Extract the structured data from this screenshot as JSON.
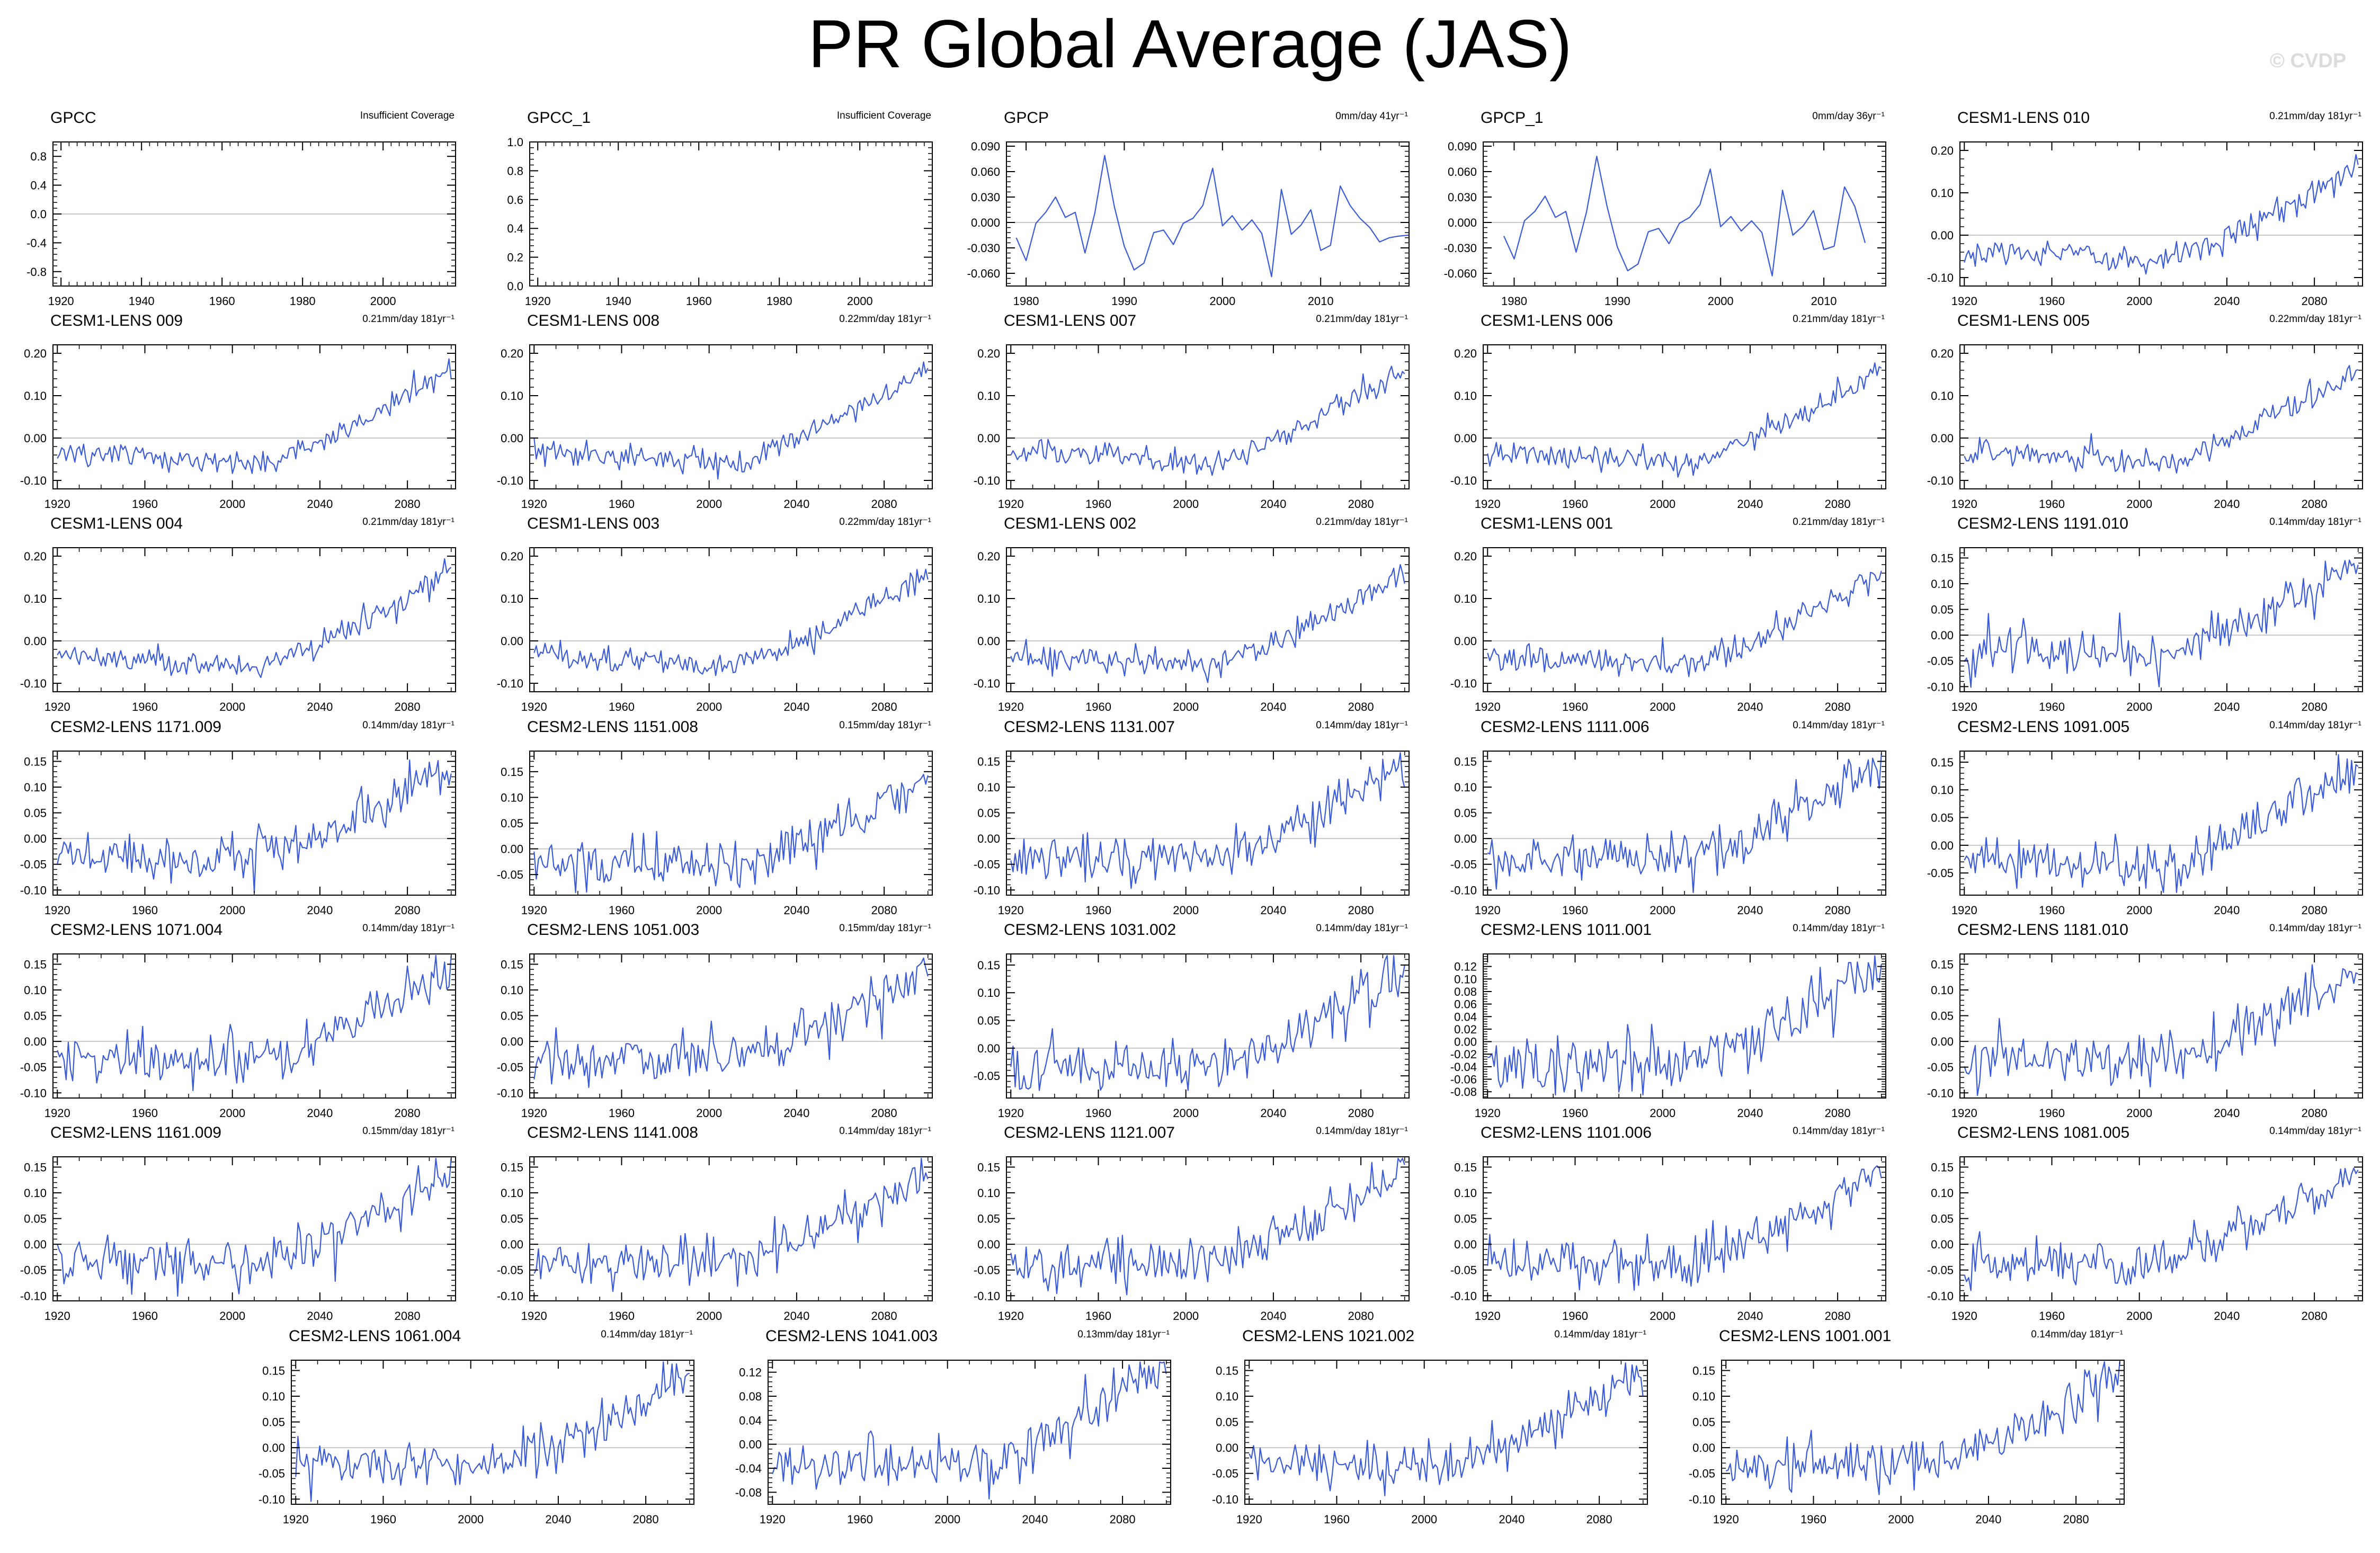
{
  "title": "PR Global Average (JAS)",
  "watermark": "© CVDP",
  "colors": {
    "line": "#3a5bd9",
    "zero": "#c8c8c8",
    "frame": "#000000"
  },
  "chart_data": [
    {
      "type": "line",
      "title": "GPCC",
      "note": "Insufficient Coverage",
      "x_ticks": [
        1920,
        1940,
        1960,
        1980,
        2000
      ],
      "y_ticks": [
        -0.8,
        -0.4,
        0.0,
        0.4,
        0.8
      ],
      "tick_decimals": 1,
      "xlim": [
        1918,
        2018
      ],
      "ylim": [
        -1.0,
        1.0
      ],
      "series": []
    },
    {
      "type": "line",
      "title": "GPCC_1",
      "note": "Insufficient Coverage",
      "x_ticks": [
        1920,
        1940,
        1960,
        1980,
        2000
      ],
      "y_ticks": [
        0.0,
        0.2,
        0.4,
        0.6,
        0.8,
        1.0
      ],
      "tick_decimals": 1,
      "xlim": [
        1918,
        2018
      ],
      "ylim": [
        0.0,
        1.0
      ],
      "series": []
    },
    {
      "type": "line",
      "title": "GPCP",
      "note": "0mm/day 41yr⁻¹",
      "x_ticks": [
        1980,
        1990,
        2000,
        2010
      ],
      "y_ticks": [
        -0.06,
        -0.03,
        0.0,
        0.03,
        0.06,
        0.09
      ],
      "tick_decimals": 3,
      "xlim": [
        1978,
        2019
      ],
      "ylim": [
        -0.075,
        0.095
      ],
      "series": [
        {
          "name": "GPCP",
          "x_start": 1979,
          "values": [
            -0.018,
            -0.045,
            -0.001,
            0.012,
            0.03,
            0.006,
            0.012,
            -0.036,
            0.011,
            0.079,
            0.018,
            -0.028,
            -0.056,
            -0.048,
            -0.012,
            -0.009,
            -0.026,
            -0.001,
            0.005,
            0.02,
            0.064,
            -0.004,
            0.008,
            -0.009,
            0.003,
            -0.013,
            -0.064,
            0.039,
            -0.014,
            -0.003,
            0.015,
            -0.033,
            -0.027,
            0.043,
            0.02,
            0.005,
            -0.006,
            -0.023,
            -0.018,
            -0.016,
            -0.015
          ]
        }
      ]
    },
    {
      "type": "line",
      "title": "GPCP_1",
      "note": "0mm/day 36yr⁻¹",
      "x_ticks": [
        1980,
        1990,
        2000,
        2010
      ],
      "y_ticks": [
        -0.06,
        -0.03,
        0.0,
        0.03,
        0.06,
        0.09
      ],
      "tick_decimals": 3,
      "xlim": [
        1977,
        2016
      ],
      "ylim": [
        -0.075,
        0.095
      ],
      "series": [
        {
          "name": "GPCP_1",
          "x_start": 1979,
          "values": [
            -0.016,
            -0.043,
            0.002,
            0.013,
            0.031,
            0.006,
            0.013,
            -0.035,
            0.012,
            0.078,
            0.019,
            -0.029,
            -0.057,
            -0.049,
            -0.011,
            -0.007,
            -0.025,
            -0.001,
            0.006,
            0.021,
            0.063,
            -0.005,
            0.007,
            -0.01,
            0.002,
            -0.012,
            -0.063,
            0.038,
            -0.015,
            -0.004,
            0.014,
            -0.032,
            -0.028,
            0.042,
            0.019,
            -0.024
          ]
        }
      ]
    },
    {
      "type": "line",
      "title": "CESM1-LENS 010",
      "note": "0.21mm/day 181yr⁻¹",
      "model": "CESM1",
      "seed": 10,
      "x_ticks": [
        1920,
        1960,
        2000,
        2040,
        2080
      ],
      "y_ticks": [
        -0.1,
        0.0,
        0.1,
        0.2
      ],
      "tick_decimals": 2,
      "xlim": [
        1918,
        2102
      ],
      "ylim": [
        -0.12,
        0.22
      ],
      "x_start": 1920,
      "x_end": 2100
    },
    {
      "type": "line",
      "title": "CESM1-LENS 009",
      "note": "0.21mm/day 181yr⁻¹",
      "model": "CESM1",
      "seed": 9,
      "x_ticks": [
        1920,
        1960,
        2000,
        2040,
        2080
      ],
      "y_ticks": [
        -0.1,
        0.0,
        0.1,
        0.2
      ],
      "tick_decimals": 2,
      "xlim": [
        1918,
        2102
      ],
      "ylim": [
        -0.12,
        0.22
      ],
      "x_start": 1920,
      "x_end": 2100
    },
    {
      "type": "line",
      "title": "CESM1-LENS 008",
      "note": "0.22mm/day 181yr⁻¹",
      "model": "CESM1",
      "seed": 8,
      "x_ticks": [
        1920,
        1960,
        2000,
        2040,
        2080
      ],
      "y_ticks": [
        -0.1,
        0.0,
        0.1,
        0.2
      ],
      "tick_decimals": 2,
      "xlim": [
        1918,
        2102
      ],
      "ylim": [
        -0.12,
        0.22
      ],
      "x_start": 1920,
      "x_end": 2100
    },
    {
      "type": "line",
      "title": "CESM1-LENS 007",
      "note": "0.21mm/day 181yr⁻¹",
      "model": "CESM1",
      "seed": 7,
      "x_ticks": [
        1920,
        1960,
        2000,
        2040,
        2080
      ],
      "y_ticks": [
        -0.1,
        0.0,
        0.1,
        0.2
      ],
      "tick_decimals": 2,
      "xlim": [
        1918,
        2102
      ],
      "ylim": [
        -0.12,
        0.22
      ],
      "x_start": 1920,
      "x_end": 2100
    },
    {
      "type": "line",
      "title": "CESM1-LENS 006",
      "note": "0.21mm/day 181yr⁻¹",
      "model": "CESM1",
      "seed": 6,
      "x_ticks": [
        1920,
        1960,
        2000,
        2040,
        2080
      ],
      "y_ticks": [
        -0.1,
        0.0,
        0.1,
        0.2
      ],
      "tick_decimals": 2,
      "xlim": [
        1918,
        2102
      ],
      "ylim": [
        -0.12,
        0.22
      ],
      "x_start": 1920,
      "x_end": 2100
    },
    {
      "type": "line",
      "title": "CESM1-LENS 005",
      "note": "0.22mm/day 181yr⁻¹",
      "model": "CESM1",
      "seed": 5,
      "x_ticks": [
        1920,
        1960,
        2000,
        2040,
        2080
      ],
      "y_ticks": [
        -0.1,
        0.0,
        0.1,
        0.2
      ],
      "tick_decimals": 2,
      "xlim": [
        1918,
        2102
      ],
      "ylim": [
        -0.12,
        0.22
      ],
      "x_start": 1920,
      "x_end": 2100
    },
    {
      "type": "line",
      "title": "CESM1-LENS 004",
      "note": "0.21mm/day 181yr⁻¹",
      "model": "CESM1",
      "seed": 4,
      "x_ticks": [
        1920,
        1960,
        2000,
        2040,
        2080
      ],
      "y_ticks": [
        -0.1,
        0.0,
        0.1,
        0.2
      ],
      "tick_decimals": 2,
      "xlim": [
        1918,
        2102
      ],
      "ylim": [
        -0.12,
        0.22
      ],
      "x_start": 1920,
      "x_end": 2100
    },
    {
      "type": "line",
      "title": "CESM1-LENS 003",
      "note": "0.22mm/day 181yr⁻¹",
      "model": "CESM1",
      "seed": 3,
      "x_ticks": [
        1920,
        1960,
        2000,
        2040,
        2080
      ],
      "y_ticks": [
        -0.1,
        0.0,
        0.1,
        0.2
      ],
      "tick_decimals": 2,
      "xlim": [
        1918,
        2102
      ],
      "ylim": [
        -0.12,
        0.22
      ],
      "x_start": 1920,
      "x_end": 2100
    },
    {
      "type": "line",
      "title": "CESM1-LENS 002",
      "note": "0.21mm/day 181yr⁻¹",
      "model": "CESM1",
      "seed": 2,
      "x_ticks": [
        1920,
        1960,
        2000,
        2040,
        2080
      ],
      "y_ticks": [
        -0.1,
        0.0,
        0.1,
        0.2
      ],
      "tick_decimals": 2,
      "xlim": [
        1918,
        2102
      ],
      "ylim": [
        -0.12,
        0.22
      ],
      "x_start": 1920,
      "x_end": 2100
    },
    {
      "type": "line",
      "title": "CESM1-LENS 001",
      "note": "0.21mm/day 181yr⁻¹",
      "model": "CESM1",
      "seed": 1,
      "x_ticks": [
        1920,
        1960,
        2000,
        2040,
        2080
      ],
      "y_ticks": [
        -0.1,
        0.0,
        0.1,
        0.2
      ],
      "tick_decimals": 2,
      "xlim": [
        1918,
        2102
      ],
      "ylim": [
        -0.12,
        0.22
      ],
      "x_start": 1920,
      "x_end": 2100
    },
    {
      "type": "line",
      "title": "CESM2-LENS 1191.010",
      "note": "0.14mm/day 181yr⁻¹",
      "model": "CESM2",
      "seed": 20,
      "x_ticks": [
        1920,
        1960,
        2000,
        2040,
        2080
      ],
      "y_ticks": [
        -0.1,
        -0.05,
        0.0,
        0.05,
        0.1,
        0.15
      ],
      "tick_decimals": 2,
      "xlim": [
        1918,
        2102
      ],
      "ylim": [
        -0.11,
        0.17
      ],
      "x_start": 1920,
      "x_end": 2100
    },
    {
      "type": "line",
      "title": "CESM2-LENS 1171.009",
      "note": "0.14mm/day 181yr⁻¹",
      "model": "CESM2",
      "seed": 19,
      "x_ticks": [
        1920,
        1960,
        2000,
        2040,
        2080
      ],
      "y_ticks": [
        -0.1,
        -0.05,
        0.0,
        0.05,
        0.1,
        0.15
      ],
      "tick_decimals": 2,
      "xlim": [
        1918,
        2102
      ],
      "ylim": [
        -0.11,
        0.17
      ],
      "x_start": 1920,
      "x_end": 2100
    },
    {
      "type": "line",
      "title": "CESM2-LENS 1151.008",
      "note": "0.15mm/day 181yr⁻¹",
      "model": "CESM2",
      "seed": 18,
      "x_ticks": [
        1920,
        1960,
        2000,
        2040,
        2080
      ],
      "y_ticks": [
        -0.05,
        0.0,
        0.05,
        0.1,
        0.15
      ],
      "tick_decimals": 2,
      "xlim": [
        1918,
        2102
      ],
      "ylim": [
        -0.09,
        0.19
      ],
      "x_start": 1920,
      "x_end": 2100
    },
    {
      "type": "line",
      "title": "CESM2-LENS 1131.007",
      "note": "0.14mm/day 181yr⁻¹",
      "model": "CESM2",
      "seed": 17,
      "x_ticks": [
        1920,
        1960,
        2000,
        2040,
        2080
      ],
      "y_ticks": [
        -0.1,
        -0.05,
        0.0,
        0.05,
        0.1,
        0.15
      ],
      "tick_decimals": 2,
      "xlim": [
        1918,
        2102
      ],
      "ylim": [
        -0.11,
        0.17
      ],
      "x_start": 1920,
      "x_end": 2100
    },
    {
      "type": "line",
      "title": "CESM2-LENS 1111.006",
      "note": "0.14mm/day 181yr⁻¹",
      "model": "CESM2",
      "seed": 16,
      "x_ticks": [
        1920,
        1960,
        2000,
        2040,
        2080
      ],
      "y_ticks": [
        -0.1,
        -0.05,
        0.0,
        0.05,
        0.1,
        0.15
      ],
      "tick_decimals": 2,
      "xlim": [
        1918,
        2102
      ],
      "ylim": [
        -0.11,
        0.17
      ],
      "x_start": 1920,
      "x_end": 2100
    },
    {
      "type": "line",
      "title": "CESM2-LENS 1091.005",
      "note": "0.14mm/day 181yr⁻¹",
      "model": "CESM2",
      "seed": 15,
      "x_ticks": [
        1920,
        1960,
        2000,
        2040,
        2080
      ],
      "y_ticks": [
        -0.05,
        0.0,
        0.05,
        0.1,
        0.15
      ],
      "tick_decimals": 2,
      "xlim": [
        1918,
        2102
      ],
      "ylim": [
        -0.09,
        0.17
      ],
      "x_start": 1920,
      "x_end": 2100
    },
    {
      "type": "line",
      "title": "CESM2-LENS 1071.004",
      "note": "0.14mm/day 181yr⁻¹",
      "model": "CESM2",
      "seed": 14,
      "x_ticks": [
        1920,
        1960,
        2000,
        2040,
        2080
      ],
      "y_ticks": [
        -0.1,
        -0.05,
        0.0,
        0.05,
        0.1,
        0.15
      ],
      "tick_decimals": 2,
      "xlim": [
        1918,
        2102
      ],
      "ylim": [
        -0.11,
        0.17
      ],
      "x_start": 1920,
      "x_end": 2100
    },
    {
      "type": "line",
      "title": "CESM2-LENS 1051.003",
      "note": "0.15mm/day 181yr⁻¹",
      "model": "CESM2",
      "seed": 13,
      "x_ticks": [
        1920,
        1960,
        2000,
        2040,
        2080
      ],
      "y_ticks": [
        -0.1,
        -0.05,
        0.0,
        0.05,
        0.1,
        0.15
      ],
      "tick_decimals": 2,
      "xlim": [
        1918,
        2102
      ],
      "ylim": [
        -0.11,
        0.17
      ],
      "x_start": 1920,
      "x_end": 2100
    },
    {
      "type": "line",
      "title": "CESM2-LENS 1031.002",
      "note": "0.14mm/day 181yr⁻¹",
      "model": "CESM2",
      "seed": 12,
      "x_ticks": [
        1920,
        1960,
        2000,
        2040,
        2080
      ],
      "y_ticks": [
        -0.05,
        0.0,
        0.05,
        0.1,
        0.15
      ],
      "tick_decimals": 2,
      "xlim": [
        1918,
        2102
      ],
      "ylim": [
        -0.09,
        0.17
      ],
      "x_start": 1920,
      "x_end": 2100
    },
    {
      "type": "line",
      "title": "CESM2-LENS 1011.001",
      "note": "0.14mm/day 181yr⁻¹",
      "model": "CESM2",
      "seed": 11,
      "x_ticks": [
        1920,
        1960,
        2000,
        2040,
        2080
      ],
      "y_ticks": [
        -0.08,
        -0.06,
        -0.04,
        -0.02,
        0.0,
        0.02,
        0.04,
        0.06,
        0.08,
        0.1,
        0.12
      ],
      "tick_decimals": 2,
      "xlim": [
        1918,
        2102
      ],
      "ylim": [
        -0.09,
        0.14
      ],
      "x_start": 1920,
      "x_end": 2100
    },
    {
      "type": "line",
      "title": "CESM2-LENS 1181.010",
      "note": "0.14mm/day 181yr⁻¹",
      "model": "CESM2",
      "seed": 21,
      "x_ticks": [
        1920,
        1960,
        2000,
        2040,
        2080
      ],
      "y_ticks": [
        -0.1,
        -0.05,
        0.0,
        0.05,
        0.1,
        0.15
      ],
      "tick_decimals": 2,
      "xlim": [
        1918,
        2102
      ],
      "ylim": [
        -0.11,
        0.17
      ],
      "x_start": 1920,
      "x_end": 2100
    },
    {
      "type": "line",
      "title": "CESM2-LENS 1161.009",
      "note": "0.15mm/day 181yr⁻¹",
      "model": "CESM2",
      "seed": 22,
      "x_ticks": [
        1920,
        1960,
        2000,
        2040,
        2080
      ],
      "y_ticks": [
        -0.1,
        -0.05,
        0.0,
        0.05,
        0.1,
        0.15
      ],
      "tick_decimals": 2,
      "xlim": [
        1918,
        2102
      ],
      "ylim": [
        -0.11,
        0.17
      ],
      "x_start": 1920,
      "x_end": 2100
    },
    {
      "type": "line",
      "title": "CESM2-LENS 1141.008",
      "note": "0.14mm/day 181yr⁻¹",
      "model": "CESM2",
      "seed": 23,
      "x_ticks": [
        1920,
        1960,
        2000,
        2040,
        2080
      ],
      "y_ticks": [
        -0.1,
        -0.05,
        0.0,
        0.05,
        0.1,
        0.15
      ],
      "tick_decimals": 2,
      "xlim": [
        1918,
        2102
      ],
      "ylim": [
        -0.11,
        0.17
      ],
      "x_start": 1920,
      "x_end": 2100
    },
    {
      "type": "line",
      "title": "CESM2-LENS 1121.007",
      "note": "0.14mm/day 181yr⁻¹",
      "model": "CESM2",
      "seed": 24,
      "x_ticks": [
        1920,
        1960,
        2000,
        2040,
        2080
      ],
      "y_ticks": [
        -0.1,
        -0.05,
        0.0,
        0.05,
        0.1,
        0.15
      ],
      "tick_decimals": 2,
      "xlim": [
        1918,
        2102
      ],
      "ylim": [
        -0.11,
        0.17
      ],
      "x_start": 1920,
      "x_end": 2100
    },
    {
      "type": "line",
      "title": "CESM2-LENS 1101.006",
      "note": "0.14mm/day 181yr⁻¹",
      "model": "CESM2",
      "seed": 25,
      "x_ticks": [
        1920,
        1960,
        2000,
        2040,
        2080
      ],
      "y_ticks": [
        -0.1,
        -0.05,
        0.0,
        0.05,
        0.1,
        0.15
      ],
      "tick_decimals": 2,
      "xlim": [
        1918,
        2102
      ],
      "ylim": [
        -0.11,
        0.17
      ],
      "x_start": 1920,
      "x_end": 2100
    },
    {
      "type": "line",
      "title": "CESM2-LENS 1081.005",
      "note": "0.14mm/day 181yr⁻¹",
      "model": "CESM2",
      "seed": 26,
      "x_ticks": [
        1920,
        1960,
        2000,
        2040,
        2080
      ],
      "y_ticks": [
        -0.1,
        -0.05,
        0.0,
        0.05,
        0.1,
        0.15
      ],
      "tick_decimals": 2,
      "xlim": [
        1918,
        2102
      ],
      "ylim": [
        -0.11,
        0.17
      ],
      "x_start": 1920,
      "x_end": 2100
    },
    {
      "type": "line",
      "title": "CESM2-LENS 1061.004",
      "note": "0.14mm/day 181yr⁻¹",
      "model": "CESM2",
      "seed": 27,
      "x_ticks": [
        1920,
        1960,
        2000,
        2040,
        2080
      ],
      "y_ticks": [
        -0.1,
        -0.05,
        0.0,
        0.05,
        0.1,
        0.15
      ],
      "tick_decimals": 2,
      "xlim": [
        1918,
        2102
      ],
      "ylim": [
        -0.11,
        0.17
      ],
      "x_start": 1920,
      "x_end": 2100
    },
    {
      "type": "line",
      "title": "CESM2-LENS 1041.003",
      "note": "0.13mm/day 181yr⁻¹",
      "model": "CESM2",
      "seed": 28,
      "x_ticks": [
        1920,
        1960,
        2000,
        2040,
        2080
      ],
      "y_ticks": [
        -0.08,
        -0.04,
        0.0,
        0.04,
        0.08,
        0.12
      ],
      "tick_decimals": 2,
      "xlim": [
        1918,
        2102
      ],
      "ylim": [
        -0.1,
        0.14
      ],
      "x_start": 1920,
      "x_end": 2100
    },
    {
      "type": "line",
      "title": "CESM2-LENS 1021.002",
      "note": "0.14mm/day 181yr⁻¹",
      "model": "CESM2",
      "seed": 29,
      "x_ticks": [
        1920,
        1960,
        2000,
        2040,
        2080
      ],
      "y_ticks": [
        -0.1,
        -0.05,
        0.0,
        0.05,
        0.1,
        0.15
      ],
      "tick_decimals": 2,
      "xlim": [
        1918,
        2102
      ],
      "ylim": [
        -0.11,
        0.17
      ],
      "x_start": 1920,
      "x_end": 2100
    },
    {
      "type": "line",
      "title": "CESM2-LENS 1001.001",
      "note": "0.14mm/day 181yr⁻¹",
      "model": "CESM2",
      "seed": 30,
      "x_ticks": [
        1920,
        1960,
        2000,
        2040,
        2080
      ],
      "y_ticks": [
        -0.1,
        -0.05,
        0.0,
        0.05,
        0.1,
        0.15
      ],
      "tick_decimals": 2,
      "xlim": [
        1918,
        2102
      ],
      "ylim": [
        -0.11,
        0.17
      ],
      "x_start": 1920,
      "x_end": 2100
    }
  ]
}
